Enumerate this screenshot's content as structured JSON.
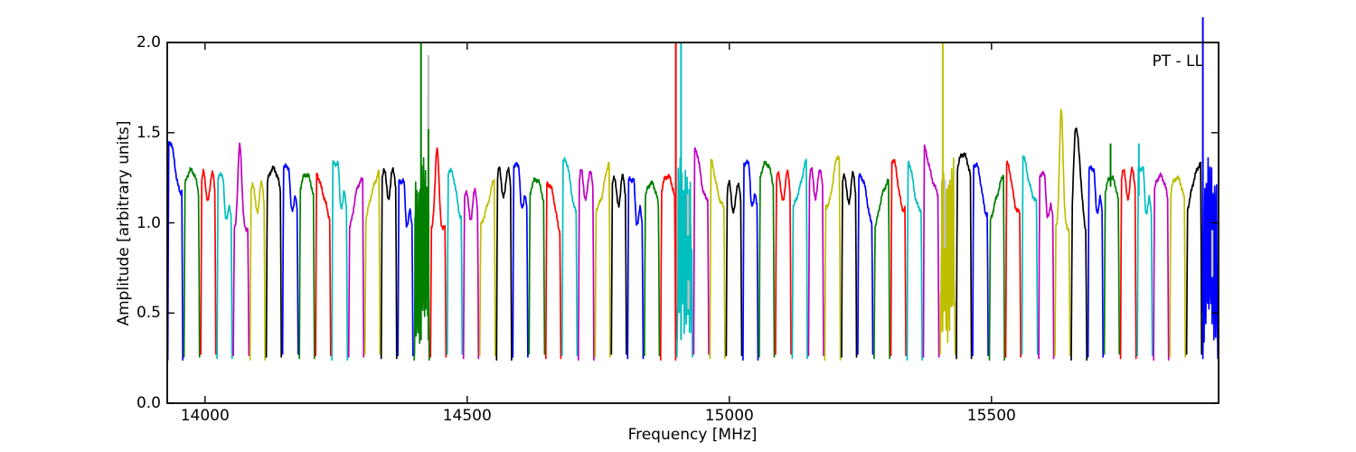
{
  "chart_data": {
    "type": "line",
    "annotation": "PT - LL",
    "xlabel": "Frequency [MHz]",
    "ylabel": "Amplitude [arbitrary units]",
    "xlim": [
      13928,
      15933
    ],
    "ylim": [
      0.0,
      2.0
    ],
    "x_ticks": {
      "values": [
        14000,
        14500,
        15000,
        15500
      ],
      "labels": [
        "14000",
        "14500",
        "15000",
        "15500"
      ]
    },
    "y_ticks": {
      "values": [
        0.0,
        0.5,
        1.0,
        1.5,
        2.0
      ],
      "labels": [
        "0.0",
        "0.5",
        "1.0",
        "1.5",
        "2.0"
      ]
    },
    "grid": false,
    "legend": null,
    "subband_width_mhz": 31.3,
    "baseline_amplitude": 0.27,
    "color_cycle": [
      "b",
      "g",
      "r",
      "c",
      "m",
      "y",
      "k"
    ],
    "palette": {
      "b": "#0000ff",
      "g": "#007f00",
      "r": "#ff0000",
      "c": "#00bfbf",
      "m": "#bf00bf",
      "y": "#bfbf00",
      "k": "#000000",
      "flagged": "#c0c0c0"
    },
    "segments": [
      {
        "f0": 13928,
        "c": "b",
        "a": 1.43,
        "s": "ramp"
      },
      {
        "f0": 13959,
        "c": "g",
        "a": 1.29,
        "s": "arch"
      },
      {
        "f0": 13991,
        "c": "r",
        "a": 1.28,
        "s": "double"
      },
      {
        "f0": 14022,
        "c": "c",
        "a": 1.26,
        "s": "stepdown"
      },
      {
        "f0": 14053,
        "c": "m",
        "a": 1.44,
        "s": "peak"
      },
      {
        "f0": 14085,
        "c": "y",
        "a": 1.22,
        "s": "double"
      },
      {
        "f0": 14116,
        "c": "k",
        "a": 1.3,
        "s": "arch"
      },
      {
        "f0": 14147,
        "c": "b",
        "a": 1.31,
        "s": "stepdown"
      },
      {
        "f0": 14179,
        "c": "g",
        "a": 1.27,
        "s": "arch"
      },
      {
        "f0": 14210,
        "c": "r",
        "a": 1.28,
        "s": "ramp"
      },
      {
        "f0": 14241,
        "c": "c",
        "a": 1.33,
        "s": "stepdown"
      },
      {
        "f0": 14273,
        "c": "m",
        "a": 1.26,
        "s": "rampup"
      },
      {
        "f0": 14304,
        "c": "y",
        "a": 1.29,
        "s": "rampup"
      },
      {
        "f0": 14335,
        "c": "k",
        "a": 1.3,
        "s": "double"
      },
      {
        "f0": 14367,
        "c": "b",
        "a": 1.23,
        "s": "stepdown"
      },
      {
        "f0": 14398,
        "c": "g",
        "a": 1.35,
        "s": "noisy",
        "spikes": [
          {
            "f": 14412,
            "a": 2.0,
            "b": 0.35
          },
          {
            "f": 14426,
            "a": 1.7,
            "b": 0.35
          }
        ]
      },
      {
        "f0": 14429,
        "c": "r",
        "a": 1.42,
        "s": "peak"
      },
      {
        "f0": 14461,
        "c": "c",
        "a": 1.31,
        "s": "ramp"
      },
      {
        "f0": 14492,
        "c": "m",
        "a": 1.18,
        "s": "double"
      },
      {
        "f0": 14523,
        "c": "y",
        "a": 1.23,
        "s": "rampup"
      },
      {
        "f0": 14555,
        "c": "k",
        "a": 1.3,
        "s": "double"
      },
      {
        "f0": 14586,
        "c": "b",
        "a": 1.32,
        "s": "stepdown"
      },
      {
        "f0": 14617,
        "c": "g",
        "a": 1.24,
        "s": "arch"
      },
      {
        "f0": 14649,
        "c": "r",
        "a": 1.24,
        "s": "ramp"
      },
      {
        "f0": 14680,
        "c": "c",
        "a": 1.35,
        "s": "ramp"
      },
      {
        "f0": 14711,
        "c": "m",
        "a": 1.29,
        "s": "double"
      },
      {
        "f0": 14743,
        "c": "y",
        "a": 1.31,
        "s": "rampup"
      },
      {
        "f0": 14774,
        "c": "k",
        "a": 1.26,
        "s": "double"
      },
      {
        "f0": 14805,
        "c": "b",
        "a": 1.24,
        "s": "stepdown"
      },
      {
        "f0": 14837,
        "c": "g",
        "a": 1.22,
        "s": "arch"
      },
      {
        "f0": 14868,
        "c": "r",
        "a": 1.26,
        "s": "arch",
        "spikes": [
          {
            "f": 14898,
            "a": 2.0,
            "b": 0.35
          }
        ]
      },
      {
        "f0": 14899,
        "c": "c",
        "a": 1.35,
        "s": "noisy",
        "spikes": [
          {
            "f": 14908,
            "a": 2.0,
            "b": 0.35
          }
        ]
      },
      {
        "f0": 14931,
        "c": "m",
        "a": 1.38,
        "s": "ramp"
      },
      {
        "f0": 14962,
        "c": "y",
        "a": 1.32,
        "s": "ramp"
      },
      {
        "f0": 14993,
        "c": "k",
        "a": 1.22,
        "s": "double"
      },
      {
        "f0": 15025,
        "c": "b",
        "a": 1.33,
        "s": "stepdown"
      },
      {
        "f0": 15056,
        "c": "g",
        "a": 1.33,
        "s": "arch"
      },
      {
        "f0": 15087,
        "c": "r",
        "a": 1.28,
        "s": "double"
      },
      {
        "f0": 15119,
        "c": "c",
        "a": 1.33,
        "s": "rampup"
      },
      {
        "f0": 15150,
        "c": "m",
        "a": 1.3,
        "s": "double"
      },
      {
        "f0": 15181,
        "c": "y",
        "a": 1.35,
        "s": "rampup"
      },
      {
        "f0": 15213,
        "c": "k",
        "a": 1.27,
        "s": "double"
      },
      {
        "f0": 15244,
        "c": "b",
        "a": 1.28,
        "s": "ramp"
      },
      {
        "f0": 15275,
        "c": "g",
        "a": 1.25,
        "s": "rampup"
      },
      {
        "f0": 15307,
        "c": "r",
        "a": 1.33,
        "s": "ramp"
      },
      {
        "f0": 15338,
        "c": "c",
        "a": 1.31,
        "s": "ramp"
      },
      {
        "f0": 15369,
        "c": "m",
        "a": 1.4,
        "s": "ramp"
      },
      {
        "f0": 15401,
        "c": "y",
        "a": 1.35,
        "s": "noisy",
        "spikes": [
          {
            "f": 15407,
            "a": 2.0,
            "b": 0.5
          }
        ]
      },
      {
        "f0": 15432,
        "c": "k",
        "a": 1.38,
        "s": "arch"
      },
      {
        "f0": 15463,
        "c": "b",
        "a": 1.33,
        "s": "ramp"
      },
      {
        "f0": 15495,
        "c": "g",
        "a": 1.27,
        "s": "rampup"
      },
      {
        "f0": 15526,
        "c": "r",
        "a": 1.3,
        "s": "ramp"
      },
      {
        "f0": 15557,
        "c": "c",
        "a": 1.35,
        "s": "ramp"
      },
      {
        "f0": 15589,
        "c": "m",
        "a": 1.27,
        "s": "stepdown"
      },
      {
        "f0": 15620,
        "c": "y",
        "a": 1.63,
        "s": "peak"
      },
      {
        "f0": 15651,
        "c": "k",
        "a": 1.53,
        "s": "tallramp"
      },
      {
        "f0": 15683,
        "c": "b",
        "a": 1.3,
        "s": "stepdown"
      },
      {
        "f0": 15714,
        "c": "g",
        "a": 1.25,
        "s": "arch",
        "spikes": [
          {
            "f": 15727,
            "a": 1.44,
            "b": 1.2
          }
        ]
      },
      {
        "f0": 15745,
        "c": "r",
        "a": 1.3,
        "s": "double"
      },
      {
        "f0": 15777,
        "c": "c",
        "a": 1.3,
        "s": "stepdown",
        "spikes": [
          {
            "f": 15781,
            "a": 1.44,
            "b": 1.15
          }
        ]
      },
      {
        "f0": 15808,
        "c": "m",
        "a": 1.26,
        "s": "arch"
      },
      {
        "f0": 15839,
        "c": "y",
        "a": 1.25,
        "s": "arch"
      },
      {
        "f0": 15871,
        "c": "k",
        "a": 1.35,
        "s": "rampup"
      },
      {
        "f0": 15902,
        "c": "b",
        "a": 1.35,
        "s": "noisy",
        "spikes": [
          {
            "f": 15903,
            "a": 2.14,
            "b": 0.5
          }
        ]
      }
    ],
    "flagged_marks": [
      {
        "f": 14426,
        "a0": 1.52,
        "a1": 1.93
      },
      {
        "f": 14921,
        "a0": 0.93,
        "a1": 1.16
      },
      {
        "f": 14922,
        "a0": 0.52,
        "a1": 0.68
      },
      {
        "f": 15411,
        "a0": 0.86,
        "a1": 1.24
      },
      {
        "f": 15921,
        "a0": 0.7,
        "a1": 0.96
      }
    ]
  }
}
